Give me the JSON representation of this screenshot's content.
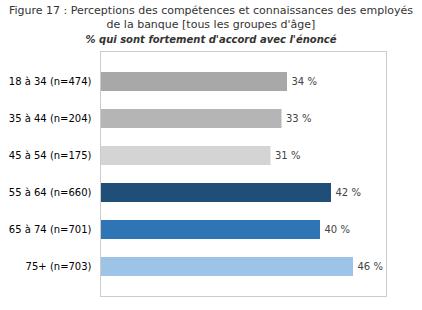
{
  "chart_data": {
    "type": "bar",
    "orientation": "horizontal",
    "title": "Figure 17 : Perceptions des compétences et connaissances des employés de la banque [tous les groupes d'âge]",
    "subtitle": "% qui sont fortement d'accord avec l'énoncé",
    "categories": [
      "18 à 34 (n=474)",
      "35 à 44 (n=204)",
      "45 à 54 (n=175)",
      "55 à 64 (n=660)",
      "65 à 74 (n=701)",
      "75+ (n=703)"
    ],
    "values": [
      34,
      33,
      31,
      42,
      40,
      46
    ],
    "value_labels": [
      "34 %",
      "33 %",
      "31 %",
      "42 %",
      "40 %",
      "46 %"
    ],
    "colors": [
      "#a8a8a8",
      "#b5b5b5",
      "#d4d4d4",
      "#1f4e79",
      "#2e75b6",
      "#9dc3e6"
    ],
    "xlim": [
      0,
      52
    ],
    "data_labels": true,
    "tick_labels": "y",
    "grid": false
  }
}
